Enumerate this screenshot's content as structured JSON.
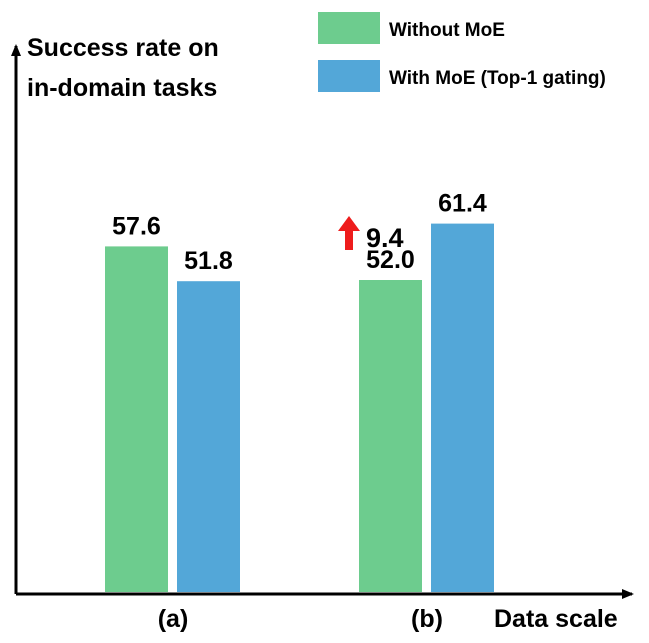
{
  "chart_data": {
    "type": "bar",
    "ylabel": [
      "Success rate on",
      "in-domain tasks"
    ],
    "xlabel": "Data scale",
    "categories": [
      "(a)",
      "(b)"
    ],
    "series": [
      {
        "name": "Without MoE",
        "color": "#6dcc8e",
        "values": [
          57.6,
          52.0
        ]
      },
      {
        "name": "With MoE (Top-1 gating)",
        "color": "#53a7d8",
        "values": [
          51.8,
          61.4
        ]
      }
    ],
    "value_labels": [
      [
        "57.6",
        "52.0"
      ],
      [
        "51.8",
        "61.4"
      ]
    ],
    "annotation": {
      "text": "9.4",
      "color": "#ee1c1c",
      "category": "(b)"
    },
    "legend_position": "top-right",
    "grid": false
  }
}
